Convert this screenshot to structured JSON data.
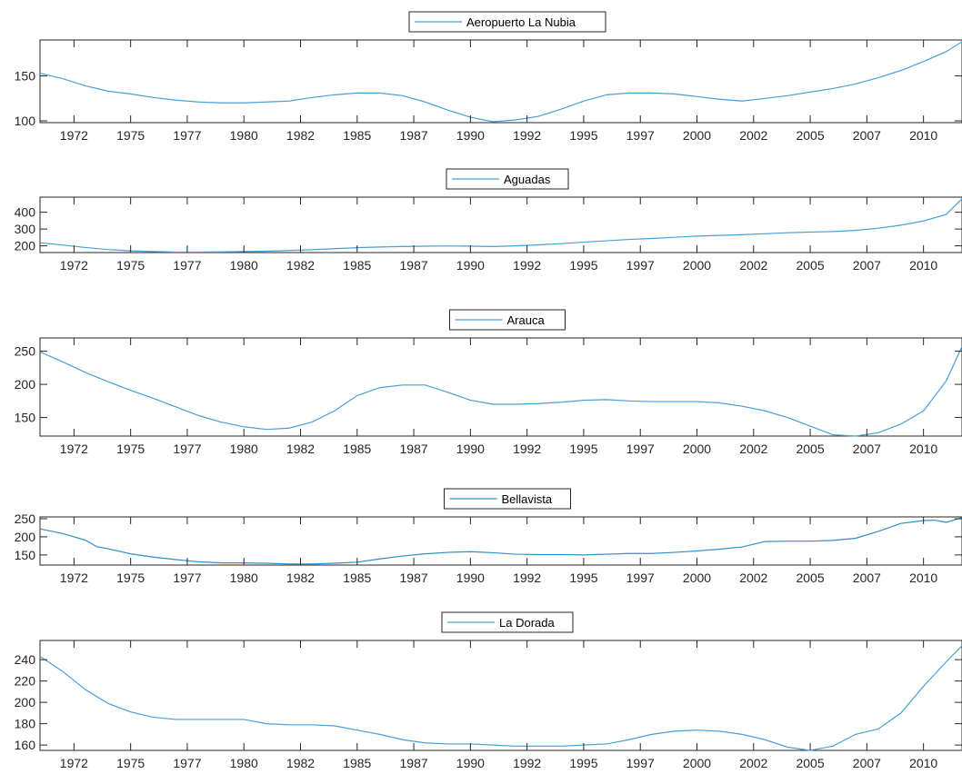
{
  "chart_data": [
    {
      "type": "line",
      "series": [
        {
          "name": "Aeropuerto La Nubia",
          "color": "#4a9fd6",
          "x": [
            1970.5,
            1971.5,
            1972.5,
            1973.5,
            1974.5,
            1975.5,
            1976.5,
            1977.5,
            1978.5,
            1979.5,
            1980.5,
            1981.5,
            1982.5,
            1983.5,
            1984.5,
            1985.5,
            1986.5,
            1987.5,
            1988.5,
            1989.5,
            1990.5,
            1991.5,
            1992.5,
            1993.5,
            1994.5,
            1995.5,
            1996.5,
            1997.5,
            1998.5,
            1999.5,
            2000.5,
            2001.5,
            2002.5,
            2003.5,
            2004.5,
            2005.5,
            2006.5,
            2007.5,
            2008.5,
            2009.5,
            2010.5,
            2011.2
          ],
          "y": [
            153,
            147,
            139,
            133,
            130,
            126,
            123,
            121,
            120,
            120,
            121,
            122,
            126,
            129,
            131,
            131,
            128,
            121,
            112,
            104,
            99,
            101,
            105,
            113,
            122,
            129,
            131,
            131,
            130,
            127,
            124,
            122,
            125,
            128,
            132,
            136,
            141,
            148,
            156,
            166,
            177,
            188
          ]
        }
      ],
      "xticks": [
        1972,
        1975,
        1977,
        1980,
        1982,
        1985,
        1987,
        1990,
        1992,
        1995,
        1997,
        2000,
        2002,
        2005,
        2007,
        2010
      ],
      "xtick_pos": [
        1972.0,
        1974.5,
        1977.0,
        1979.5,
        1982.0,
        1984.5,
        1987.0,
        1989.5,
        1992.0,
        1994.5,
        1997.0,
        1999.5,
        2002.0,
        2004.5,
        2007.0,
        2009.5
      ],
      "yticks": [
        100,
        150
      ],
      "xlim": [
        1970.5,
        2011.2
      ],
      "ylim": [
        98,
        190
      ]
    },
    {
      "type": "line",
      "series": [
        {
          "name": "Aguadas",
          "color": "#4a9fd6",
          "x": [
            1970.5,
            1971.5,
            1972.5,
            1973.5,
            1974.5,
            1975.5,
            1976.5,
            1977.5,
            1978.5,
            1979.5,
            1980.5,
            1981.5,
            1982.5,
            1983.5,
            1984.5,
            1985.5,
            1986.5,
            1987.5,
            1988.5,
            1989.5,
            1990.5,
            1991.5,
            1992.5,
            1993.5,
            1994.5,
            1995.5,
            1996.5,
            1997.5,
            1998.5,
            1999.5,
            2000.5,
            2001.5,
            2002.5,
            2003.5,
            2004.5,
            2005.5,
            2006.5,
            2007.5,
            2008.5,
            2009.5,
            2010.5,
            2011.2
          ],
          "y": [
            218,
            205,
            190,
            178,
            170,
            166,
            163,
            163,
            164,
            166,
            168,
            172,
            177,
            183,
            189,
            193,
            196,
            198,
            199,
            198,
            196,
            200,
            206,
            213,
            222,
            230,
            238,
            244,
            251,
            258,
            262,
            266,
            272,
            278,
            282,
            285,
            292,
            305,
            323,
            348,
            387,
            480
          ]
        }
      ],
      "xticks": [
        1972,
        1975,
        1977,
        1980,
        1982,
        1985,
        1987,
        1990,
        1992,
        1995,
        1997,
        2000,
        2002,
        2005,
        2007,
        2010
      ],
      "xtick_pos": [
        1972.0,
        1974.5,
        1977.0,
        1979.5,
        1982.0,
        1984.5,
        1987.0,
        1989.5,
        1992.0,
        1994.5,
        1997.0,
        1999.5,
        2002.0,
        2004.5,
        2007.0,
        2009.5
      ],
      "yticks": [
        200,
        300,
        400
      ],
      "xlim": [
        1970.5,
        2011.2
      ],
      "ylim": [
        160,
        490
      ]
    },
    {
      "type": "line",
      "series": [
        {
          "name": "Arauca",
          "color": "#4a9fd6",
          "x": [
            1970.5,
            1971.5,
            1972.5,
            1973.5,
            1974.5,
            1975.5,
            1976.5,
            1977.5,
            1978.5,
            1979.5,
            1980.5,
            1981.5,
            1982.5,
            1983.5,
            1984.5,
            1985.5,
            1986.5,
            1987.5,
            1988.5,
            1989.5,
            1990.5,
            1991.5,
            1992.5,
            1993.5,
            1994.5,
            1995.5,
            1996.5,
            1997.5,
            1998.5,
            1999.5,
            2000.5,
            2001.5,
            2002.5,
            2003.5,
            2004.5,
            2005.5,
            2006.5,
            2007.5,
            2008.5,
            2009.5,
            2010.5,
            2011.2
          ],
          "y": [
            249,
            234,
            218,
            204,
            191,
            179,
            166,
            153,
            143,
            136,
            132,
            134,
            143,
            160,
            183,
            195,
            199,
            199,
            188,
            176,
            170,
            170,
            171,
            173,
            176,
            177,
            175,
            174,
            174,
            174,
            172,
            167,
            160,
            150,
            137,
            124,
            122,
            127,
            140,
            160,
            205,
            257
          ]
        }
      ],
      "xticks": [
        1972,
        1975,
        1977,
        1980,
        1982,
        1985,
        1987,
        1990,
        1992,
        1995,
        1997,
        2000,
        2002,
        2005,
        2007,
        2010
      ],
      "xtick_pos": [
        1972.0,
        1974.5,
        1977.0,
        1979.5,
        1982.0,
        1984.5,
        1987.0,
        1989.5,
        1992.0,
        1994.5,
        1997.0,
        1999.5,
        2002.0,
        2004.5,
        2007.0,
        2009.5
      ],
      "yticks": [
        150,
        200,
        250
      ],
      "xlim": [
        1970.5,
        2011.2
      ],
      "ylim": [
        122,
        270
      ]
    },
    {
      "type": "line",
      "series": [
        {
          "name": "Bellavista",
          "color": "#2e8ec8",
          "x": [
            1970.5,
            1971.5,
            1972.5,
            1973.0,
            1973.5,
            1974.5,
            1975.5,
            1976.5,
            1977.5,
            1978.5,
            1979.5,
            1980.5,
            1981.5,
            1982.5,
            1983.5,
            1984.5,
            1985.5,
            1986.5,
            1987.5,
            1988.5,
            1989.5,
            1990.5,
            1991.5,
            1992.5,
            1993.5,
            1994.5,
            1995.5,
            1996.5,
            1997.5,
            1998.5,
            1999.5,
            2000.5,
            2001.5,
            2002.5,
            2003.5,
            2004.5,
            2005.5,
            2006.5,
            2007.5,
            2008.5,
            2009.5,
            2010.0,
            2010.5,
            2011.2
          ],
          "y": [
            222,
            209,
            191,
            173,
            167,
            153,
            144,
            137,
            131,
            128,
            128,
            127,
            125,
            125,
            127,
            130,
            139,
            147,
            153,
            157,
            159,
            156,
            152,
            151,
            151,
            150,
            152,
            154,
            154,
            157,
            161,
            166,
            172,
            187,
            188,
            188,
            190,
            196,
            215,
            237,
            245,
            246,
            240,
            253
          ]
        }
      ],
      "xticks": [
        1972,
        1975,
        1977,
        1980,
        1982,
        1985,
        1987,
        1990,
        1992,
        1995,
        1997,
        2000,
        2002,
        2005,
        2007,
        2010
      ],
      "xtick_pos": [
        1972.0,
        1974.5,
        1977.0,
        1979.5,
        1982.0,
        1984.5,
        1987.0,
        1989.5,
        1992.0,
        1994.5,
        1997.0,
        1999.5,
        2002.0,
        2004.5,
        2007.0,
        2009.5
      ],
      "yticks": [
        150,
        200,
        250
      ],
      "xlim": [
        1970.5,
        2011.2
      ],
      "ylim": [
        122,
        255
      ]
    },
    {
      "type": "line",
      "series": [
        {
          "name": "La Dorada",
          "color": "#4a9fd6",
          "x": [
            1970.5,
            1971.5,
            1972.5,
            1973.5,
            1974.5,
            1975.5,
            1976.5,
            1977.5,
            1978.5,
            1979.5,
            1980.5,
            1981.5,
            1982.5,
            1983.5,
            1984.5,
            1985.5,
            1986.5,
            1987.5,
            1988.5,
            1989.5,
            1990.5,
            1991.5,
            1992.5,
            1993.5,
            1994.5,
            1995.5,
            1996.5,
            1997.5,
            1998.5,
            1999.5,
            2000.5,
            2001.5,
            2002.5,
            2003.5,
            2004.5,
            2005.5,
            2006.5,
            2007.5,
            2008.5,
            2009.5,
            2010.5,
            2011.2
          ],
          "y": [
            243,
            229,
            212,
            199,
            191,
            186,
            184,
            184,
            184,
            184,
            180,
            179,
            179,
            178,
            174,
            170,
            165,
            162,
            161,
            161,
            160,
            159,
            159,
            159,
            160,
            161,
            165,
            170,
            173,
            174,
            173,
            170,
            165,
            158,
            155,
            159,
            170,
            175,
            190,
            215,
            238,
            253
          ]
        }
      ],
      "xticks": [
        1972,
        1975,
        1977,
        1980,
        1982,
        1985,
        1987,
        1990,
        1992,
        1995,
        1997,
        2000,
        2002,
        2005,
        2007,
        2010
      ],
      "xtick_pos": [
        1972.0,
        1974.5,
        1977.0,
        1979.5,
        1982.0,
        1984.5,
        1987.0,
        1989.5,
        1992.0,
        1994.5,
        1997.0,
        1999.5,
        2002.0,
        2004.5,
        2007.0,
        2009.5
      ],
      "yticks": [
        160,
        180,
        200,
        220,
        240
      ],
      "xlim": [
        1970.5,
        2011.2
      ],
      "ylim": [
        155,
        258
      ]
    }
  ]
}
